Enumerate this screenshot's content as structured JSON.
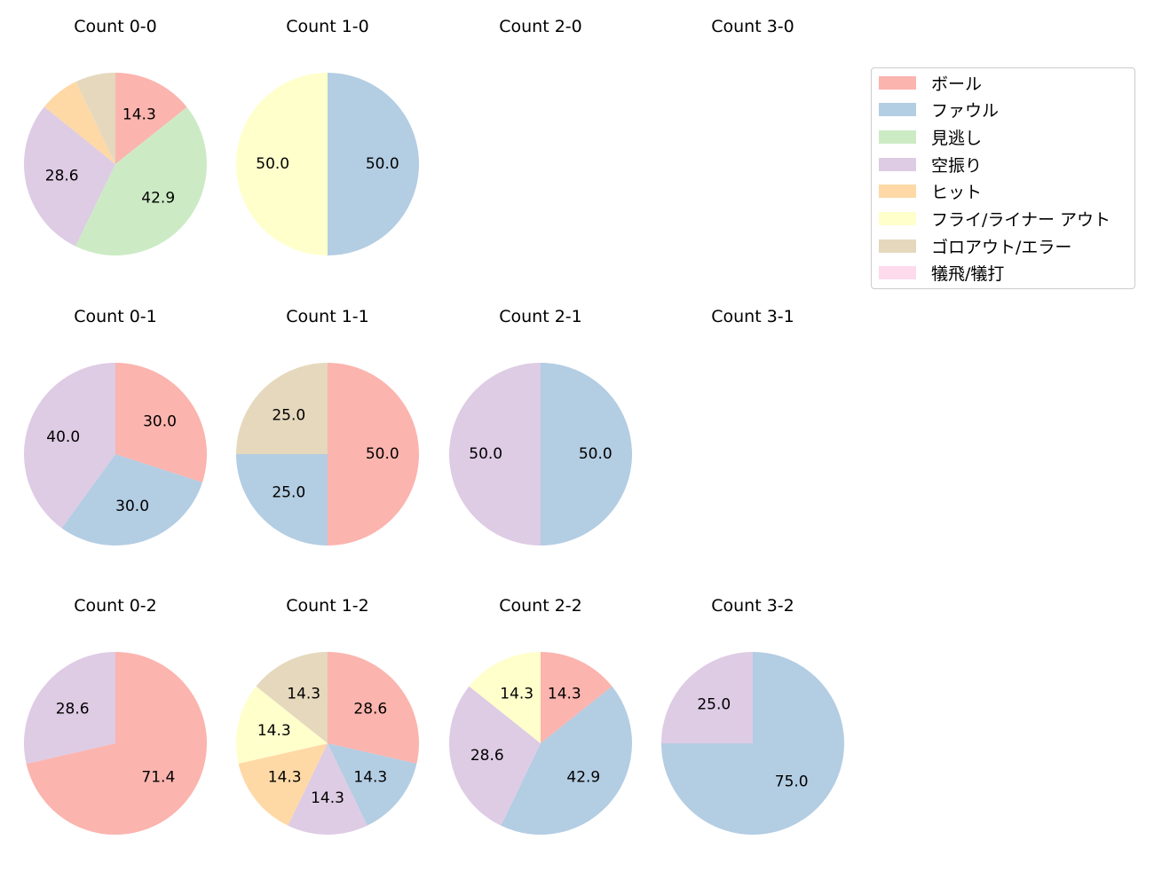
{
  "chart_data": [
    {
      "type": "pie",
      "title": "Count 0-0",
      "slices": [
        {
          "category": "ボール",
          "value": 14.3
        },
        {
          "category": "見逃し",
          "value": 42.9
        },
        {
          "category": "空振り",
          "value": 28.6
        },
        {
          "category": "ヒット",
          "value": 7.1
        },
        {
          "category": "ゴロアウト/エラー",
          "value": 7.1
        }
      ]
    },
    {
      "type": "pie",
      "title": "Count 1-0",
      "slices": [
        {
          "category": "ファウル",
          "value": 50.0
        },
        {
          "category": "フライ/ライナー アウト",
          "value": 50.0
        }
      ]
    },
    {
      "type": "pie",
      "title": "Count 2-0",
      "slices": []
    },
    {
      "type": "pie",
      "title": "Count 3-0",
      "slices": []
    },
    {
      "type": "pie",
      "title": "Count 0-1",
      "slices": [
        {
          "category": "ボール",
          "value": 30.0
        },
        {
          "category": "ファウル",
          "value": 30.0
        },
        {
          "category": "空振り",
          "value": 40.0
        }
      ]
    },
    {
      "type": "pie",
      "title": "Count 1-1",
      "slices": [
        {
          "category": "ボール",
          "value": 50.0
        },
        {
          "category": "ファウル",
          "value": 25.0
        },
        {
          "category": "ゴロアウト/エラー",
          "value": 25.0
        }
      ]
    },
    {
      "type": "pie",
      "title": "Count 2-1",
      "slices": [
        {
          "category": "ファウル",
          "value": 50.0
        },
        {
          "category": "空振り",
          "value": 50.0
        }
      ]
    },
    {
      "type": "pie",
      "title": "Count 3-1",
      "slices": []
    },
    {
      "type": "pie",
      "title": "Count 0-2",
      "slices": [
        {
          "category": "ボール",
          "value": 71.4
        },
        {
          "category": "空振り",
          "value": 28.6
        }
      ]
    },
    {
      "type": "pie",
      "title": "Count 1-2",
      "slices": [
        {
          "category": "ボール",
          "value": 28.6
        },
        {
          "category": "ファウル",
          "value": 14.3
        },
        {
          "category": "空振り",
          "value": 14.3
        },
        {
          "category": "ヒット",
          "value": 14.3
        },
        {
          "category": "フライ/ライナー アウト",
          "value": 14.3
        },
        {
          "category": "ゴロアウト/エラー",
          "value": 14.3
        }
      ]
    },
    {
      "type": "pie",
      "title": "Count 2-2",
      "slices": [
        {
          "category": "ボール",
          "value": 14.3
        },
        {
          "category": "ファウル",
          "value": 42.9
        },
        {
          "category": "空振り",
          "value": 28.6
        },
        {
          "category": "フライ/ライナー アウト",
          "value": 14.3
        }
      ]
    },
    {
      "type": "pie",
      "title": "Count 3-2",
      "slices": [
        {
          "category": "ファウル",
          "value": 75.0
        },
        {
          "category": "空振り",
          "value": 25.0
        }
      ]
    }
  ],
  "legend": {
    "placement": "top-right",
    "items": [
      {
        "label": "ボール",
        "color": "#fbb4ae"
      },
      {
        "label": "ファウル",
        "color": "#b3cde3"
      },
      {
        "label": "見逃し",
        "color": "#ccebc5"
      },
      {
        "label": "空振り",
        "color": "#decbe4"
      },
      {
        "label": "ヒット",
        "color": "#fed9a6"
      },
      {
        "label": "フライ/ライナー アウト",
        "color": "#ffffcc"
      },
      {
        "label": "ゴロアウト/エラー",
        "color": "#e5d8bd"
      },
      {
        "label": "犠飛/犠打",
        "color": "#fddaec"
      }
    ]
  }
}
